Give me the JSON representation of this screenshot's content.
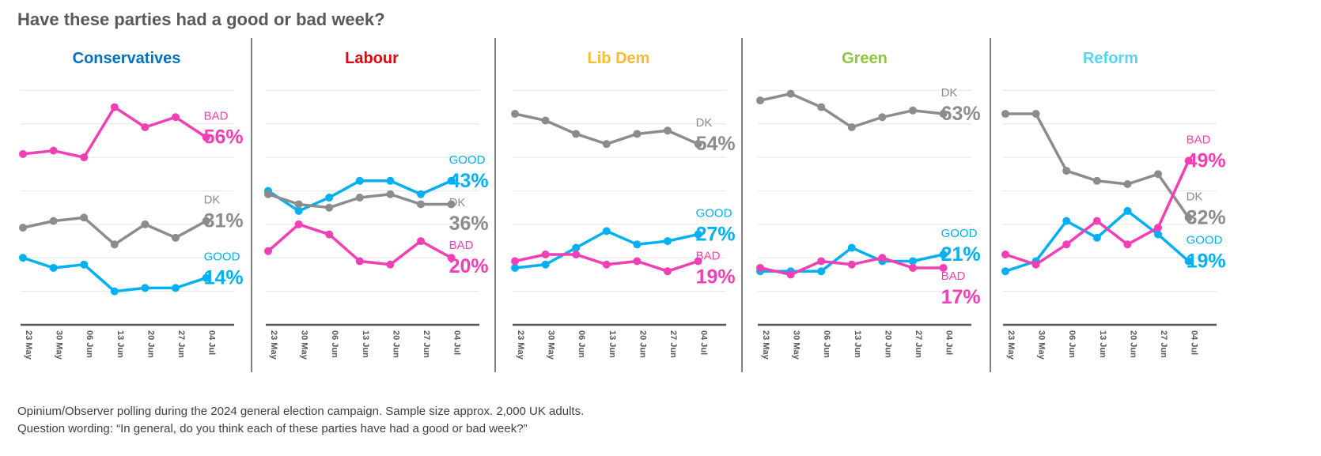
{
  "title": "Have these parties had a good or bad week?",
  "footnotes": [
    "Opinium/Observer polling during the 2024 general election campaign. Sample size approx. 2,000 UK adults.",
    "Question wording: “In general, do you think each of these parties have had a good or bad week?”"
  ],
  "colors": {
    "good": "#00B0F0",
    "bad": "#F23FB5",
    "dk": "#8C8C8C",
    "grid": "#E6E6E6",
    "axis": "#595959",
    "divider": "#7F7F7F"
  },
  "chart_data": [
    {
      "type": "line",
      "title": "Conservatives",
      "title_color": "#0070C0",
      "x": [
        "23 May",
        "30 May",
        "06 Jun",
        "13 Jun",
        "20 Jun",
        "27 Jun",
        "04 Jul"
      ],
      "ylim": [
        0,
        80
      ],
      "grid": true,
      "series": [
        {
          "name": "BAD",
          "color": "#F23FB5",
          "values": [
            51,
            52,
            50,
            65,
            59,
            62,
            56
          ],
          "end_label": "56%"
        },
        {
          "name": "DK",
          "color": "#8C8C8C",
          "values": [
            29,
            31,
            32,
            24,
            30,
            26,
            31
          ],
          "end_label": "31%"
        },
        {
          "name": "GOOD",
          "color": "#00B0F0",
          "values": [
            20,
            17,
            18,
            10,
            11,
            11,
            14
          ],
          "end_label": "14%"
        }
      ]
    },
    {
      "type": "line",
      "title": "Labour",
      "title_color": "#E8000B",
      "x": [
        "23 May",
        "30 May",
        "06 Jun",
        "13 Jun",
        "20 Jun",
        "27 Jun",
        "04 Jul"
      ],
      "ylim": [
        0,
        80
      ],
      "grid": true,
      "series": [
        {
          "name": "GOOD",
          "color": "#00B0F0",
          "values": [
            40,
            34,
            38,
            43,
            43,
            39,
            43
          ],
          "end_label": "43%"
        },
        {
          "name": "DK",
          "color": "#8C8C8C",
          "values": [
            39,
            36,
            35,
            38,
            39,
            36,
            36
          ],
          "end_label": "36%"
        },
        {
          "name": "BAD",
          "color": "#F23FB5",
          "values": [
            22,
            30,
            27,
            19,
            18,
            25,
            20
          ],
          "end_label": "20%"
        }
      ]
    },
    {
      "type": "line",
      "title": "Lib Dem",
      "title_color": "#FDBB30",
      "x": [
        "23 May",
        "30 May",
        "06 Jun",
        "13 Jun",
        "20 Jun",
        "27 Jun",
        "04 Jul"
      ],
      "ylim": [
        0,
        80
      ],
      "grid": true,
      "series": [
        {
          "name": "DK",
          "color": "#8C8C8C",
          "values": [
            63,
            61,
            57,
            54,
            57,
            58,
            54
          ],
          "end_label": "54%"
        },
        {
          "name": "GOOD",
          "color": "#00B0F0",
          "values": [
            17,
            18,
            23,
            28,
            24,
            25,
            27
          ],
          "end_label": "27%"
        },
        {
          "name": "BAD",
          "color": "#F23FB5",
          "values": [
            19,
            21,
            21,
            18,
            19,
            16,
            19
          ],
          "end_label": "19%"
        }
      ]
    },
    {
      "type": "line",
      "title": "Green",
      "title_color": "#8DC63F",
      "x": [
        "23 May",
        "30 May",
        "06 Jun",
        "13 Jun",
        "20 Jun",
        "27 Jun",
        "04 Jul"
      ],
      "ylim": [
        0,
        80
      ],
      "grid": true,
      "series": [
        {
          "name": "DK",
          "color": "#8C8C8C",
          "values": [
            67,
            69,
            65,
            59,
            62,
            64,
            63
          ],
          "end_label": "63%"
        },
        {
          "name": "GOOD",
          "color": "#00B0F0",
          "values": [
            16,
            16,
            16,
            23,
            19,
            19,
            21
          ],
          "end_label": "21%"
        },
        {
          "name": "BAD",
          "color": "#F23FB5",
          "values": [
            17,
            15,
            19,
            18,
            20,
            17,
            17
          ],
          "end_label": "17%"
        }
      ]
    },
    {
      "type": "line",
      "title": "Reform",
      "title_color": "#5BD3F5",
      "x": [
        "23 May",
        "30 May",
        "06 Jun",
        "13 Jun",
        "20 Jun",
        "27 Jun",
        "04 Jul"
      ],
      "ylim": [
        0,
        80
      ],
      "grid": true,
      "series": [
        {
          "name": "DK",
          "color": "#8C8C8C",
          "values": [
            63,
            63,
            46,
            43,
            42,
            45,
            32
          ],
          "end_label": "32%"
        },
        {
          "name": "GOOD",
          "color": "#00B0F0",
          "values": [
            16,
            19,
            31,
            26,
            34,
            27,
            19
          ],
          "end_label": "19%"
        },
        {
          "name": "BAD",
          "color": "#F23FB5",
          "values": [
            21,
            18,
            24,
            31,
            24,
            29,
            49
          ],
          "end_label": "49%"
        }
      ]
    }
  ]
}
